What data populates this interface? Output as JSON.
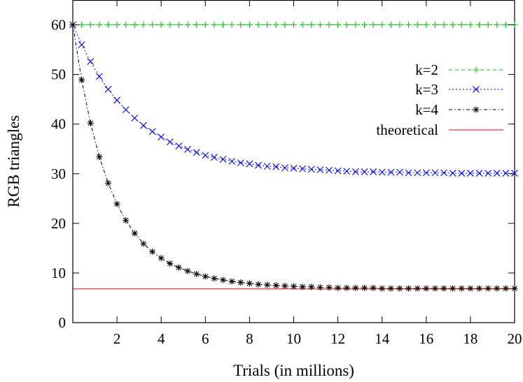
{
  "chart_data": {
    "type": "line",
    "xlabel": "Trials (in millions)",
    "ylabel": "RGB triangles",
    "xlim": [
      0,
      20
    ],
    "ylim": [
      0,
      65
    ],
    "xticks": [
      2,
      4,
      6,
      8,
      10,
      12,
      14,
      16,
      18,
      20
    ],
    "yticks": [
      0,
      10,
      20,
      30,
      40,
      50,
      60
    ],
    "grid": false,
    "legend_position": "top-right",
    "series": [
      {
        "name": "k=2",
        "color": "#00cc00",
        "line_style": "dashed",
        "marker": "plus",
        "x": [
          0,
          0.4,
          0.8,
          1.2,
          1.6,
          2.0,
          2.4,
          2.8,
          3.2,
          3.6,
          4.0,
          4.4,
          4.8,
          5.2,
          5.6,
          6.0,
          6.4,
          6.8,
          7.2,
          7.6,
          8.0,
          8.4,
          8.8,
          9.2,
          9.6,
          10.0,
          10.4,
          10.8,
          11.2,
          11.6,
          12.0,
          12.4,
          12.8,
          13.2,
          13.6,
          14.0,
          14.4,
          14.8,
          15.2,
          15.6,
          16.0,
          16.4,
          16.8,
          17.2,
          17.6,
          18.0,
          18.4,
          18.8,
          19.2,
          19.6,
          20.0
        ],
        "y": [
          60,
          60,
          60,
          60,
          60,
          60,
          60,
          60,
          60,
          60,
          60,
          60,
          60,
          60,
          60,
          60,
          60,
          60,
          60,
          60,
          60,
          60,
          60,
          60,
          60,
          60,
          60,
          60,
          60,
          60,
          60,
          60,
          60,
          60,
          60,
          60,
          60,
          60,
          60,
          60,
          60,
          60,
          60,
          60,
          60,
          60,
          60,
          60,
          60,
          60,
          60
        ]
      },
      {
        "name": "k=3",
        "color": "#0000ff",
        "line_style": "dotted",
        "marker": "x",
        "x": [
          0,
          0.4,
          0.8,
          1.2,
          1.6,
          2.0,
          2.4,
          2.8,
          3.2,
          3.6,
          4.0,
          4.4,
          4.8,
          5.2,
          5.6,
          6.0,
          6.4,
          6.8,
          7.2,
          7.6,
          8.0,
          8.4,
          8.8,
          9.2,
          9.6,
          10.0,
          10.4,
          10.8,
          11.2,
          11.6,
          12.0,
          12.4,
          12.8,
          13.2,
          13.6,
          14.0,
          14.4,
          14.8,
          15.2,
          15.6,
          16.0,
          16.4,
          16.8,
          17.2,
          17.6,
          18.0,
          18.4,
          18.8,
          19.2,
          19.6,
          20.0
        ],
        "y": [
          60.0,
          56.0,
          52.6,
          49.6,
          47.0,
          44.8,
          42.9,
          41.2,
          39.7,
          38.5,
          37.4,
          36.4,
          35.6,
          34.9,
          34.3,
          33.7,
          33.3,
          32.9,
          32.5,
          32.2,
          32.0,
          31.7,
          31.5,
          31.4,
          31.2,
          31.1,
          31.0,
          30.9,
          30.8,
          30.7,
          30.6,
          30.5,
          30.4,
          30.4,
          30.4,
          30.3,
          30.3,
          30.3,
          30.2,
          30.2,
          30.2,
          30.2,
          30.2,
          30.1,
          30.1,
          30.1,
          30.1,
          30.1,
          30.1,
          30.1,
          30.1
        ]
      },
      {
        "name": "k=4",
        "color": "#000000",
        "line_style": "dash-dot",
        "marker": "asterisk",
        "x": [
          0,
          0.4,
          0.8,
          1.2,
          1.6,
          2.0,
          2.4,
          2.8,
          3.2,
          3.6,
          4.0,
          4.4,
          4.8,
          5.2,
          5.6,
          6.0,
          6.4,
          6.8,
          7.2,
          7.6,
          8.0,
          8.4,
          8.8,
          9.2,
          9.6,
          10.0,
          10.4,
          10.8,
          11.2,
          11.6,
          12.0,
          12.4,
          12.8,
          13.2,
          13.6,
          14.0,
          14.4,
          14.8,
          15.2,
          15.6,
          16.0,
          16.4,
          16.8,
          17.2,
          17.6,
          18.0,
          18.4,
          18.8,
          19.2,
          19.6,
          20.0
        ],
        "y": [
          60.0,
          48.9,
          40.2,
          33.4,
          28.1,
          23.9,
          20.6,
          18.0,
          15.9,
          14.3,
          13.0,
          11.9,
          11.1,
          10.4,
          9.8,
          9.3,
          8.9,
          8.6,
          8.3,
          8.1,
          7.9,
          7.7,
          7.6,
          7.5,
          7.4,
          7.3,
          7.2,
          7.2,
          7.1,
          7.1,
          7.0,
          7.0,
          7.0,
          7.0,
          7.0,
          6.9,
          6.9,
          6.9,
          6.9,
          6.9,
          6.9,
          6.9,
          6.9,
          6.9,
          6.9,
          6.9,
          6.9,
          6.9,
          6.9,
          6.9,
          6.9
        ]
      },
      {
        "name": "theoretical",
        "color": "#ff0000",
        "line_style": "solid",
        "marker": "none",
        "x": [
          0,
          20
        ],
        "y": [
          6.8,
          6.8
        ]
      }
    ]
  }
}
